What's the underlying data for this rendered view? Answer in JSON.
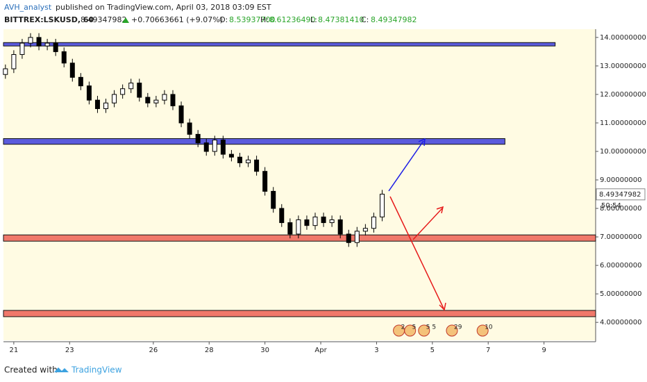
{
  "header": {
    "author": "AVH_analyst",
    "published": "published on TradingView.com, April 03, 2018 03:09 EST",
    "symbol": "BITTREX:LSKUSD, 60",
    "price": "8.49347982",
    "change": "+0.70663661 (+9.07%)",
    "o": "O:",
    "ov": "8.53937700",
    "h": "H:",
    "hv": "8.61236490",
    "l": "L:",
    "lv": "8.47381410",
    "c": "C:",
    "cv": "8.49347982"
  },
  "footer": {
    "created": "Created with",
    "brand": "TradingView"
  },
  "chart_data": {
    "type": "candlestick",
    "x": [
      -0.3,
      0,
      0.3,
      0.6,
      0.9,
      1.2,
      1.5,
      1.8,
      2.1,
      2.4,
      2.7,
      3.0,
      3.3,
      3.6,
      3.9,
      4.2,
      4.5,
      4.8,
      5.1,
      5.4,
      5.7,
      6.0,
      6.3,
      6.6,
      6.9,
      7.2,
      7.5,
      7.8,
      8.1,
      8.4,
      8.7,
      9.0,
      9.3,
      9.6,
      9.9,
      10.2,
      10.5,
      10.8,
      11.1,
      11.4,
      11.7,
      12.0,
      12.3,
      12.6,
      12.9,
      13.2
    ],
    "open": [
      12.7,
      12.9,
      13.4,
      13.8,
      14.0,
      13.7,
      13.8,
      13.5,
      13.1,
      12.6,
      12.3,
      11.8,
      11.5,
      11.7,
      12.0,
      12.2,
      12.4,
      11.9,
      11.7,
      11.8,
      12.0,
      11.6,
      11.0,
      10.6,
      10.3,
      10.0,
      10.4,
      9.9,
      9.8,
      9.6,
      9.7,
      9.3,
      8.6,
      8.0,
      7.5,
      7.1,
      7.6,
      7.4,
      7.7,
      7.5,
      7.6,
      7.1,
      6.8,
      7.2,
      7.3,
      7.7
    ],
    "high": [
      13.05,
      13.55,
      13.95,
      14.15,
      14.15,
      13.95,
      13.95,
      13.65,
      13.25,
      12.75,
      12.45,
      11.95,
      11.85,
      12.15,
      12.35,
      12.55,
      12.55,
      12.05,
      11.95,
      12.15,
      12.15,
      11.75,
      11.15,
      10.75,
      10.45,
      10.55,
      10.55,
      10.05,
      9.95,
      9.85,
      9.85,
      9.45,
      8.75,
      8.15,
      7.65,
      7.75,
      7.75,
      7.85,
      7.85,
      7.75,
      7.75,
      7.25,
      7.35,
      7.45,
      7.85,
      8.65
    ],
    "low": [
      12.55,
      12.75,
      13.25,
      13.65,
      13.55,
      13.55,
      13.35,
      12.95,
      12.45,
      12.15,
      11.65,
      11.35,
      11.35,
      11.55,
      11.85,
      12.05,
      11.75,
      11.55,
      11.55,
      11.65,
      11.45,
      10.85,
      10.45,
      10.15,
      9.85,
      9.85,
      9.75,
      9.65,
      9.45,
      9.45,
      9.15,
      8.45,
      7.85,
      7.35,
      6.95,
      6.95,
      7.25,
      7.25,
      7.35,
      7.35,
      6.95,
      6.65,
      6.65,
      7.05,
      7.15,
      7.55
    ],
    "close": [
      12.9,
      13.4,
      13.8,
      14.0,
      13.7,
      13.8,
      13.5,
      13.1,
      12.6,
      12.3,
      11.8,
      11.5,
      11.7,
      12.0,
      12.2,
      12.4,
      11.9,
      11.7,
      11.8,
      12.0,
      11.6,
      11.0,
      10.6,
      10.3,
      10.0,
      10.4,
      9.9,
      9.8,
      9.6,
      9.7,
      9.3,
      8.6,
      8.0,
      7.5,
      7.1,
      7.6,
      7.4,
      7.7,
      7.5,
      7.6,
      7.1,
      6.8,
      7.2,
      7.3,
      7.7,
      8.5
    ],
    "xlim": [
      -0.37,
      20.85
    ],
    "xticks": [
      {
        "value": 0,
        "label": "21"
      },
      {
        "value": 2,
        "label": "23"
      },
      {
        "value": 5,
        "label": "26"
      },
      {
        "value": 7,
        "label": "28"
      },
      {
        "value": 9,
        "label": "30"
      },
      {
        "value": 11,
        "label": "Apr"
      },
      {
        "value": 13,
        "label": "3"
      },
      {
        "value": 15,
        "label": "5"
      },
      {
        "value": 17,
        "label": "7"
      },
      {
        "value": 19,
        "label": "9"
      }
    ],
    "ylim": [
      3.37,
      14.29
    ],
    "yticks": [
      {
        "value": 4,
        "label": "4.00000000"
      },
      {
        "value": 5,
        "label": "5.00000000"
      },
      {
        "value": 6,
        "label": "6.00000000"
      },
      {
        "value": 7,
        "label": "7.00000000"
      },
      {
        "value": 8,
        "label": "8.00000000"
      },
      {
        "value": 9,
        "label": "9.00000000"
      },
      {
        "value": 10,
        "label": "10.00000000"
      },
      {
        "value": 11,
        "label": "11.00000000"
      },
      {
        "value": 12,
        "label": "12.00000000"
      },
      {
        "value": 13,
        "label": "13.00000000"
      },
      {
        "value": 14,
        "label": "14.00000000"
      }
    ],
    "last_price": {
      "value": 8.49347982,
      "label": "8.49347982"
    },
    "countdown": "50:54",
    "zones": [
      {
        "low": 13.7,
        "high": 13.82,
        "x_end": 19.4,
        "color": "#5b5bdd"
      },
      {
        "low": 10.25,
        "high": 10.45,
        "x_end": 17.6,
        "color": "#5b5bdd"
      },
      {
        "low": 6.85,
        "high": 7.07,
        "x_end": 20.85,
        "color": "#f0786a"
      },
      {
        "low": 4.2,
        "high": 4.42,
        "x_end": 20.85,
        "color": "#f0786a"
      }
    ],
    "events": [
      {
        "x": 13.8,
        "label": "2"
      },
      {
        "x": 14.2,
        "label": "5"
      },
      {
        "x": 14.7,
        "label": "5 5"
      },
      {
        "x": 15.7,
        "label": "29"
      },
      {
        "x": 16.8,
        "label": "10"
      }
    ]
  }
}
